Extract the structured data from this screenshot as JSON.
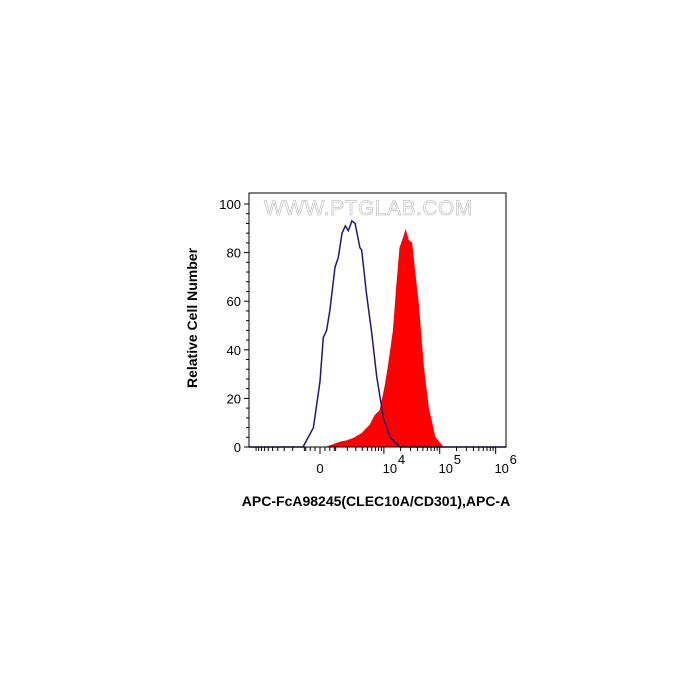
{
  "chart_data": {
    "type": "area",
    "title": "",
    "xlabel": "APC-FcA98245(CLEC10A/CD301),APC-A",
    "ylabel": "Relative Cell Number",
    "x_scale": "biexponential",
    "xlim": [
      -13400,
      1500000
    ],
    "ylim": [
      0,
      100
    ],
    "x_ticks": [
      {
        "value": 0,
        "label": "0",
        "exp": ""
      },
      {
        "value": 10000,
        "label": "10",
        "exp": "4"
      },
      {
        "value": 100000,
        "label": "10",
        "exp": "5"
      },
      {
        "value": 1000000,
        "label": "10",
        "exp": "6"
      }
    ],
    "y_ticks": [
      0,
      20,
      40,
      60,
      80,
      100
    ],
    "y_tick_labels": [
      "0",
      "20",
      "40",
      "60",
      "80",
      "100"
    ],
    "grid": false,
    "watermark": "WWW.PTGLAB.COM",
    "series": [
      {
        "style": "outline",
        "color": "#1a1a7a",
        "points": [
          [
            -1100,
            0
          ],
          [
            -400,
            8
          ],
          [
            0,
            27
          ],
          [
            200,
            45
          ],
          [
            400,
            48
          ],
          [
            600,
            56
          ],
          [
            950,
            74
          ],
          [
            1200,
            78
          ],
          [
            1500,
            88
          ],
          [
            1800,
            91
          ],
          [
            2100,
            89
          ],
          [
            2500,
            93
          ],
          [
            2900,
            92
          ],
          [
            3600,
            82
          ],
          [
            3900,
            81
          ],
          [
            4800,
            63
          ],
          [
            6000,
            47
          ],
          [
            7400,
            29
          ],
          [
            9800,
            12
          ],
          [
            13000,
            4
          ],
          [
            19500,
            0
          ]
        ]
      },
      {
        "style": "filled",
        "color": "#ff0000",
        "points": [
          [
            400,
            0
          ],
          [
            840,
            1
          ],
          [
            1330,
            2
          ],
          [
            1930,
            2.5
          ],
          [
            2670,
            3.5
          ],
          [
            3900,
            5.5
          ],
          [
            5580,
            9
          ],
          [
            6900,
            13
          ],
          [
            8500,
            15
          ],
          [
            10500,
            25
          ],
          [
            12000,
            33
          ],
          [
            14800,
            48
          ],
          [
            17000,
            66
          ],
          [
            19500,
            82
          ],
          [
            22400,
            86
          ],
          [
            24600,
            89
          ],
          [
            27500,
            85
          ],
          [
            31500,
            84
          ],
          [
            36100,
            71
          ],
          [
            41400,
            59
          ],
          [
            51000,
            33
          ],
          [
            62700,
            16
          ],
          [
            82400,
            4
          ],
          [
            115000,
            0
          ]
        ]
      }
    ]
  }
}
